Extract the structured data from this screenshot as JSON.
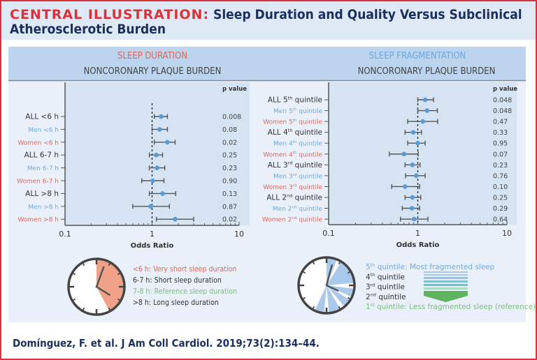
{
  "header": {
    "title_prefix": "CENTRAL ILLUSTRATION:",
    "title_line1": " Sleep Duration and Quality Versus Subclinical",
    "title_line2": "Atherosclerotic Burden"
  },
  "colors": {
    "title_red": "#d8333a",
    "navy": "#1b2f5e",
    "all": "#333333",
    "men": "#6fa8dc",
    "women": "#e0675a",
    "reference": "#7cbf7c",
    "point": "#5b9bd5",
    "wedge_short": "#f0a288",
    "wedge_frag": "#a9c8ea"
  },
  "chart_data": [
    {
      "type": "forest",
      "title": "SLEEP DURATION",
      "subtitle": "NONCORONARY PLAQUE BURDEN",
      "xlabel": "Odds Ratio",
      "xscale": "log",
      "xlim": [
        0.1,
        10
      ],
      "xticks": [
        "0.1",
        "1",
        "10"
      ],
      "reference_line": 1,
      "pvalue_header": "p value",
      "rows": [
        {
          "group": "all",
          "label": "ALL <6 h",
          "sup": "",
          "rest": "",
          "or": 1.27,
          "lo": 1.06,
          "hi": 1.5,
          "p": "0.008"
        },
        {
          "group": "men",
          "label": "Men <6 h",
          "sup": "",
          "rest": "",
          "or": 1.22,
          "lo": 1.0,
          "hi": 1.5,
          "p": "0.08"
        },
        {
          "group": "women",
          "label": "Women <6 h",
          "sup": "",
          "rest": "",
          "or": 1.5,
          "lo": 1.06,
          "hi": 1.84,
          "p": "0.02"
        },
        {
          "group": "all",
          "label": "ALL 6-7 h",
          "sup": "",
          "rest": "",
          "or": 1.12,
          "lo": 0.93,
          "hi": 1.32,
          "p": "0.25"
        },
        {
          "group": "men",
          "label": "Men 6-7 h",
          "sup": "",
          "rest": "",
          "or": 1.14,
          "lo": 0.93,
          "hi": 1.4,
          "p": "0.23"
        },
        {
          "group": "women",
          "label": "Women 6-7 h",
          "sup": "",
          "rest": "",
          "or": 1.02,
          "lo": 0.76,
          "hi": 1.37,
          "p": "0.90"
        },
        {
          "group": "all",
          "label": "ALL >8 h",
          "sup": "",
          "rest": "",
          "or": 1.32,
          "lo": 0.93,
          "hi": 1.87,
          "p": "0.13"
        },
        {
          "group": "men",
          "label": "Men >8 h",
          "sup": "",
          "rest": "",
          "or": 0.96,
          "lo": 0.6,
          "hi": 1.58,
          "p": "0.87"
        },
        {
          "group": "women",
          "label": "Women >8 h",
          "sup": "",
          "rest": "",
          "or": 1.84,
          "lo": 1.12,
          "hi": 3.0,
          "p": "0.02"
        }
      ]
    },
    {
      "type": "forest",
      "title": "SLEEP FRAGMENTATION",
      "subtitle": "NONCORONARY PLAQUE BURDEN",
      "xlabel": "Odds Ratio",
      "xscale": "log",
      "xlim": [
        0.1,
        10
      ],
      "xticks": [
        "0.1",
        "1",
        "10"
      ],
      "reference_line": 1,
      "pvalue_header": "p value",
      "rows": [
        {
          "group": "all",
          "label": "ALL 5",
          "sup": "th",
          "rest": " quintile",
          "or": 1.21,
          "lo": 1.0,
          "hi": 1.5,
          "p": "0.048"
        },
        {
          "group": "men",
          "label": "Men 5",
          "sup": "th",
          "rest": " quintile",
          "or": 1.27,
          "lo": 1.0,
          "hi": 1.66,
          "p": "0.048"
        },
        {
          "group": "women",
          "label": "Women 5",
          "sup": "th",
          "rest": " quintile",
          "or": 1.14,
          "lo": 0.77,
          "hi": 1.67,
          "p": "0.47"
        },
        {
          "group": "all",
          "label": "ALL 4",
          "sup": "th",
          "rest": " quintile",
          "or": 0.89,
          "lo": 0.72,
          "hi": 1.1,
          "p": "0.33"
        },
        {
          "group": "men",
          "label": "Men 4",
          "sup": "th",
          "rest": " quintile",
          "or": 1.0,
          "lo": 0.77,
          "hi": 1.21,
          "p": "0.95"
        },
        {
          "group": "women",
          "label": "Women 4",
          "sup": "th",
          "rest": " quintile",
          "or": 0.7,
          "lo": 0.48,
          "hi": 1.01,
          "p": "0.07"
        },
        {
          "group": "all",
          "label": "ALL 3",
          "sup": "rd",
          "rest": " quintile",
          "or": 0.87,
          "lo": 0.72,
          "hi": 1.06,
          "p": "0.23"
        },
        {
          "group": "men",
          "label": "Men 3",
          "sup": "rd",
          "rest": " quintile",
          "or": 0.96,
          "lo": 0.73,
          "hi": 1.21,
          "p": "0.76"
        },
        {
          "group": "women",
          "label": "Women 3",
          "sup": "rd",
          "rest": " quintile",
          "or": 0.72,
          "lo": 0.51,
          "hi": 1.05,
          "p": "0.10"
        },
        {
          "group": "all",
          "label": "ALL 2",
          "sup": "nd",
          "rest": " quintile",
          "or": 0.87,
          "lo": 0.72,
          "hi": 1.08,
          "p": "0.25"
        },
        {
          "group": "men",
          "label": "Men 2",
          "sup": "nd",
          "rest": " quintile",
          "or": 0.86,
          "lo": 0.67,
          "hi": 1.05,
          "p": "0.29"
        },
        {
          "group": "women",
          "label": "Women 2",
          "sup": "nd",
          "rest": " quintile",
          "or": 0.91,
          "lo": 0.64,
          "hi": 1.3,
          "p": "0.64"
        }
      ]
    }
  ],
  "legend_duration": [
    {
      "text": "<6 h: Very short sleep duration",
      "group": "women"
    },
    {
      "text": "6-7 h: Short sleep duration",
      "group": "all"
    },
    {
      "text": "7-8 h: Reference sleep duration",
      "group": "reference"
    },
    {
      "text": ">8 h: Long sleep duration",
      "group": "all"
    }
  ],
  "legend_fragmentation": [
    {
      "num": "5",
      "sup": "th",
      "text": " quintile: Most fragmented sleep",
      "group": "men"
    },
    {
      "num": "4",
      "sup": "th",
      "text": " quintile",
      "group": "all"
    },
    {
      "num": "3",
      "sup": "rd",
      "text": " quintile",
      "group": "all"
    },
    {
      "num": "2",
      "sup": "nd",
      "text": " quintile",
      "group": "all"
    },
    {
      "num": "1",
      "sup": "st",
      "text": " quintile: Less fragmented sleep (reference)",
      "group": "reference"
    }
  ],
  "citation": "Domínguez, F. et al. J Am Coll Cardiol. 2019;73(2):134–44."
}
